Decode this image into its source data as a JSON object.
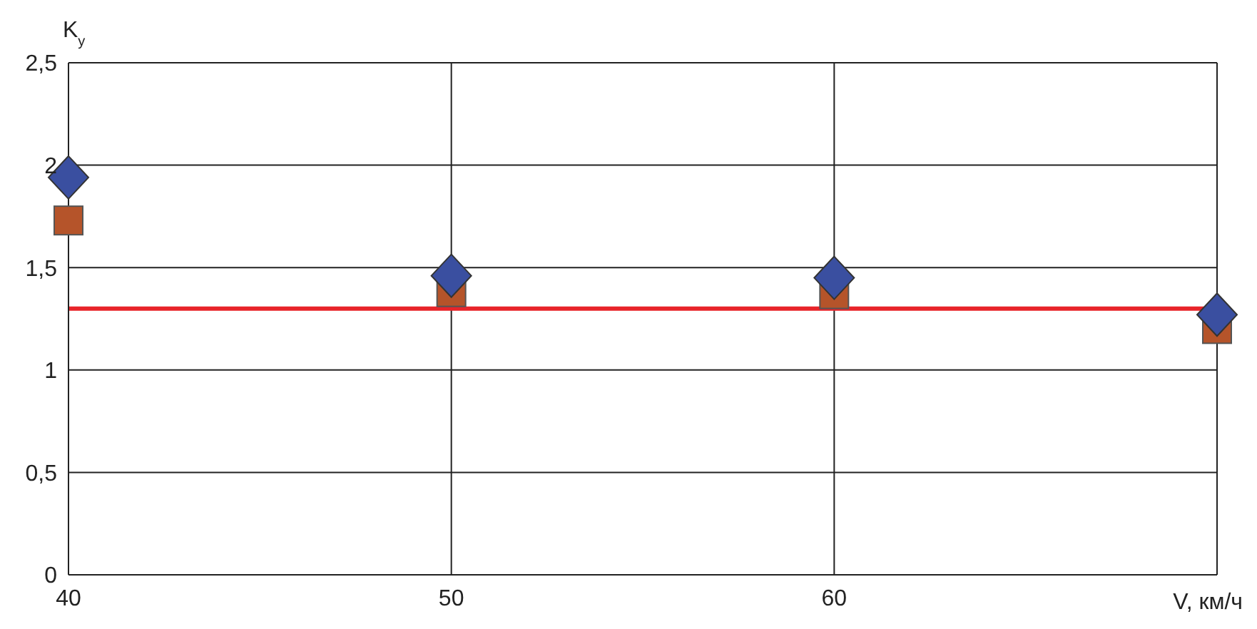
{
  "chart_data": {
    "type": "scatter",
    "xlabel": "V, км/ч",
    "ylabel": "K$_{у}$",
    "x": [
      40,
      50,
      60,
      70
    ],
    "series": [
      {
        "color": "#b5542a",
        "marker": "square",
        "values": [
          1.73,
          1.38,
          1.37,
          1.2
        ]
      },
      {
        "color": "#3a4fa0",
        "marker": "diamond",
        "values": [
          1.94,
          1.46,
          1.45,
          1.27
        ]
      }
    ],
    "xlim": [
      40,
      70
    ],
    "xticks": [
      40,
      50,
      60,
      {
        "value": 70,
        "label": null
      }
    ],
    "ylim": [
      0,
      2.5
    ],
    "yticks": [
      0,
      {
        "value": 0.5,
        "label": "0,5"
      },
      1,
      {
        "value": 1.5,
        "label": "1,5"
      },
      2,
      {
        "value": 2.5,
        "label": "2,5"
      }
    ],
    "ref_lines": [
      {
        "axis": "y",
        "value": 1.3,
        "color": "#e8242a",
        "line_style": "solid"
      }
    ],
    "grid": true,
    "legend": false
  }
}
